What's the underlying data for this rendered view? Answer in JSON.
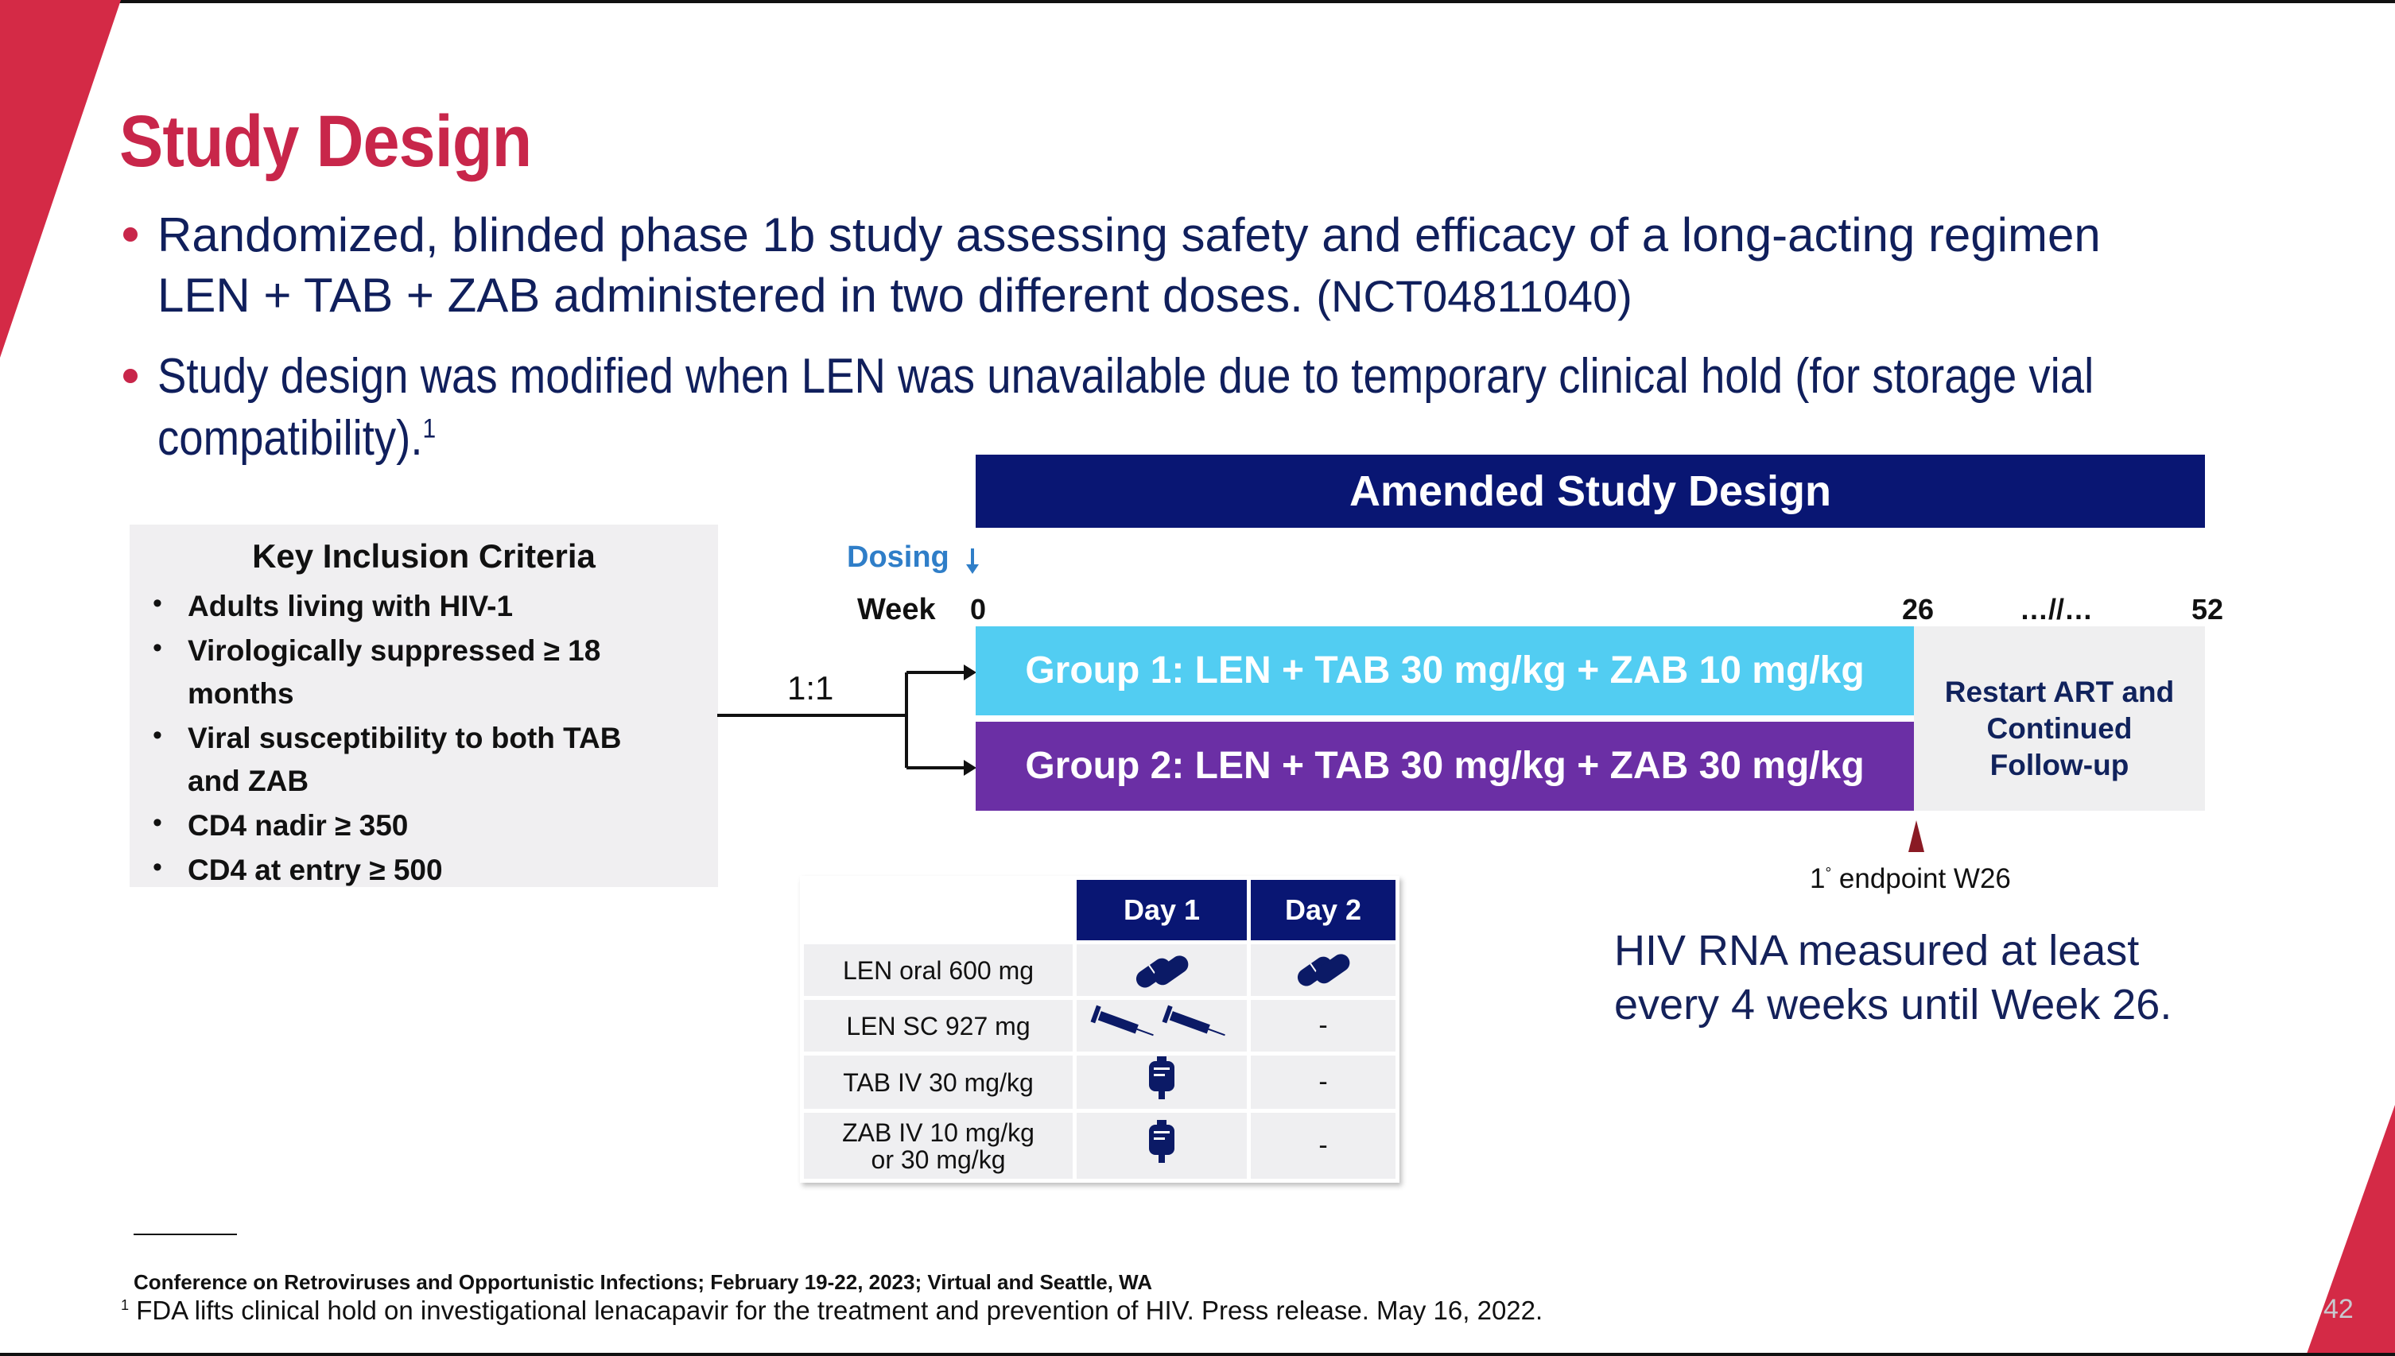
{
  "slide": {
    "title": "Study Design",
    "bullets": [
      {
        "line1": "Randomized, blinded phase 1b study assessing safety and efficacy of a long-acting regimen",
        "line2": "LEN + TAB + ZAB administered in two different doses.",
        "line2_tail": "(NCT04811040)"
      },
      {
        "line1": "Study design was modified when LEN was unavailable due to temporary clinical hold (for storage vial",
        "line2": "compatibility).",
        "sup": "1"
      }
    ],
    "criteria": {
      "title": "Key Inclusion Criteria",
      "items": [
        [
          "Adults living with HIV-1"
        ],
        [
          "Virologically suppressed ≥ 18",
          "months"
        ],
        [
          "Viral susceptibility to both TAB",
          "and ZAB"
        ],
        [
          "CD4 nadir ≥ 350"
        ],
        [
          "CD4 at entry ≥ 500"
        ]
      ]
    },
    "design": {
      "banner": "Amended Study Design",
      "dosing_label": "Dosing",
      "week_label": "Week",
      "ticks": [
        "0",
        "26",
        "…//…",
        "52"
      ],
      "ratio": "1:1",
      "group1": "Group 1: LEN + TAB 30 mg/kg + ZAB 10 mg/kg",
      "group2": "Group 2: LEN + TAB 30 mg/kg + ZAB 30 mg/kg",
      "restart": [
        "Restart ART and",
        "Continued",
        "Follow-up"
      ],
      "endpoint_prefix": "1",
      "endpoint_deg": "°",
      "endpoint_text": "endpoint W26"
    },
    "dosing_table": {
      "headers": [
        "Day 1",
        "Day 2"
      ],
      "rows": [
        {
          "label": [
            "LEN oral 600 mg"
          ],
          "day1_icon": "pills-icon",
          "day2_icon": "pills-icon",
          "day2": ""
        },
        {
          "label": [
            "LEN SC 927 mg"
          ],
          "day1_icon": "syringe-icon",
          "day2": "-"
        },
        {
          "label": [
            "TAB IV 30 mg/kg"
          ],
          "day1_icon": "iv-bag-icon",
          "day2": "-"
        },
        {
          "label": [
            "ZAB IV 10 mg/kg",
            "or 30 mg/kg"
          ],
          "day1_icon": "iv-bag-icon",
          "day2": "-"
        }
      ]
    },
    "hiv_note": [
      "HIV RNA measured at least",
      "every 4 weeks until Week 26."
    ],
    "footnotes": {
      "conference": "Conference on Retroviruses and Opportunistic Infections; February 19-22, 2023; Virtual and Seattle, WA",
      "ref_num": "1",
      "ref_text": "FDA lifts clinical hold on investigational lenacapavir for the treatment and prevention of HIV. Press release. May 16, 2022."
    },
    "page_number": "42",
    "colors": {
      "accent_red": "#c8264a",
      "navy": "#091673",
      "group1": "#52cdf2",
      "group2": "#6b2fa5"
    }
  }
}
